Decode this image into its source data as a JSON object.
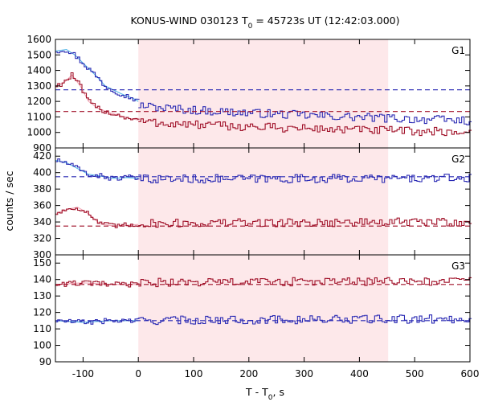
{
  "chart_data": {
    "type": "line",
    "title": "KONUS-WIND 030123 T",
    "title_sub": "0",
    "title_rest": " = 45723s UT (12:42:03.000)",
    "xlabel": "T - T",
    "xlabel_sub": "0",
    "xlabel_rest": ", s",
    "ylabel": "counts / sec",
    "xlim": [
      -150,
      600
    ],
    "x_ticks": [
      "-100",
      "0",
      "100",
      "200",
      "300",
      "400",
      "500",
      "600"
    ],
    "x_tick_values": [
      -100,
      0,
      100,
      200,
      300,
      400,
      500,
      600
    ],
    "shaded_interval": [
      0,
      452
    ],
    "shade_color": "#fde8ea",
    "colors": {
      "blue": "#2a2ab4",
      "red": "#a01028",
      "lightblue": "#58b8e8",
      "pink": "#f2a4b4"
    },
    "panels": [
      {
        "label": "G1",
        "ylim": [
          900,
          1600
        ],
        "y_ticks": [
          "900",
          "1000",
          "1100",
          "1200",
          "1300",
          "1400",
          "1500",
          "1600"
        ],
        "y_tick_values": [
          900,
          1000,
          1100,
          1200,
          1300,
          1400,
          1500,
          1600
        ],
        "bg_levels": {
          "blue": 1275,
          "red": 1135
        },
        "series": {
          "blue": {
            "pre": [
              [
                -150,
                1525
              ],
              [
                -130,
                1535
              ],
              [
                -115,
                1500
              ],
              [
                -95,
                1430
              ],
              [
                -75,
                1360
              ],
              [
                -60,
                1300
              ],
              [
                -40,
                1265
              ],
              [
                -25,
                1240
              ],
              [
                -10,
                1220
              ],
              [
                0,
                1200
              ]
            ],
            "post_start": 1180,
            "post_end": 1075
          },
          "red": {
            "pre": [
              [
                -150,
                1300
              ],
              [
                -135,
                1320
              ],
              [
                -120,
                1370
              ],
              [
                -105,
                1300
              ],
              [
                -90,
                1200
              ],
              [
                -75,
                1160
              ],
              [
                -55,
                1130
              ],
              [
                -35,
                1110
              ],
              [
                -15,
                1090
              ],
              [
                0,
                1080
              ]
            ],
            "post_start": 1075,
            "post_end": 1000
          }
        }
      },
      {
        "label": "G2",
        "ylim": [
          300,
          430
        ],
        "y_ticks": [
          "300",
          "320",
          "340",
          "360",
          "380",
          "400",
          "420"
        ],
        "y_tick_values": [
          300,
          320,
          340,
          360,
          380,
          400,
          420
        ],
        "bg_levels": {
          "blue": 395,
          "red": 335
        },
        "series": {
          "blue": {
            "pre": [
              [
                -150,
                415
              ],
              [
                -130,
                412
              ],
              [
                -110,
                405
              ],
              [
                -90,
                398
              ],
              [
                -70,
                396
              ],
              [
                -45,
                393
              ],
              [
                -20,
                394
              ],
              [
                0,
                393
              ]
            ],
            "post_start": 392,
            "post_end": 393
          },
          "red": {
            "pre": [
              [
                -150,
                350
              ],
              [
                -130,
                355
              ],
              [
                -110,
                358
              ],
              [
                -90,
                350
              ],
              [
                -70,
                338
              ],
              [
                -45,
                335
              ],
              [
                -20,
                336
              ],
              [
                0,
                337
              ]
            ],
            "post_start": 338,
            "post_end": 340
          }
        }
      },
      {
        "label": "G3",
        "ylim": [
          90,
          155
        ],
        "y_ticks": [
          "90",
          "100",
          "110",
          "120",
          "130",
          "140",
          "150"
        ],
        "y_tick_values": [
          90,
          100,
          110,
          120,
          130,
          140,
          150
        ],
        "bg_levels": {
          "blue": 115,
          "red": 137
        },
        "series": {
          "blue": {
            "pre": [
              [
                -150,
                115
              ],
              [
                -100,
                114
              ],
              [
                -50,
                115
              ],
              [
                0,
                115
              ]
            ],
            "post_start": 115,
            "post_end": 116
          },
          "red": {
            "pre": [
              [
                -150,
                137
              ],
              [
                -100,
                138
              ],
              [
                -50,
                137
              ],
              [
                0,
                137
              ]
            ],
            "post_start": 138,
            "post_end": 139
          }
        }
      }
    ]
  }
}
